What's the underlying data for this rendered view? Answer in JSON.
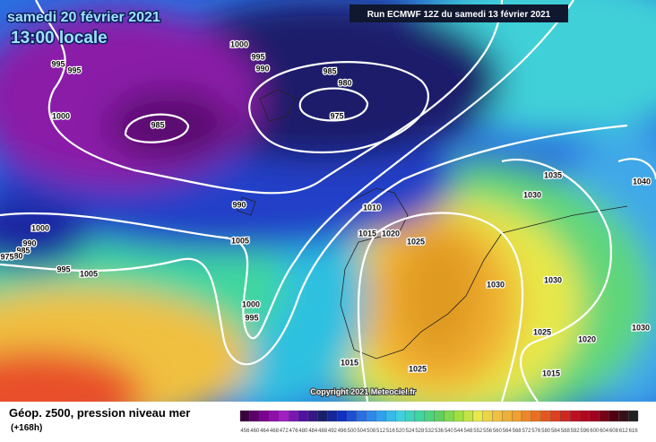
{
  "header": {
    "date": "samedi 20 février 2021",
    "time": "13:00 locale",
    "run": "Run ECMWF 12Z du samedi 13 février 2021"
  },
  "isobar_labels": [
    "995",
    "995",
    "1000",
    "995",
    "990",
    "985",
    "980",
    "975",
    "985",
    "1000",
    "990",
    "1005",
    "1010",
    "1015",
    "1020",
    "1025",
    "1000",
    "990",
    "985",
    "980",
    "975",
    "995",
    "1005",
    "1000",
    "995",
    "1015",
    "1025",
    "1030",
    "1030",
    "1030",
    "1035",
    "1040",
    "1025",
    "1020",
    "1030",
    "1015"
  ],
  "copyright": "Copyright 2021 Meteociel.fr",
  "legend": {
    "title": "Géop. z500, pression niveau mer",
    "lead": "(+168h)",
    "scale": [
      456,
      460,
      464,
      468,
      472,
      476,
      480,
      484,
      488,
      492,
      496,
      500,
      504,
      508,
      512,
      516,
      520,
      524,
      528,
      532,
      536,
      540,
      544,
      548,
      552,
      556,
      560,
      564,
      568,
      572,
      576,
      580,
      584,
      588,
      592,
      596,
      600,
      604,
      608,
      612,
      616
    ]
  }
}
